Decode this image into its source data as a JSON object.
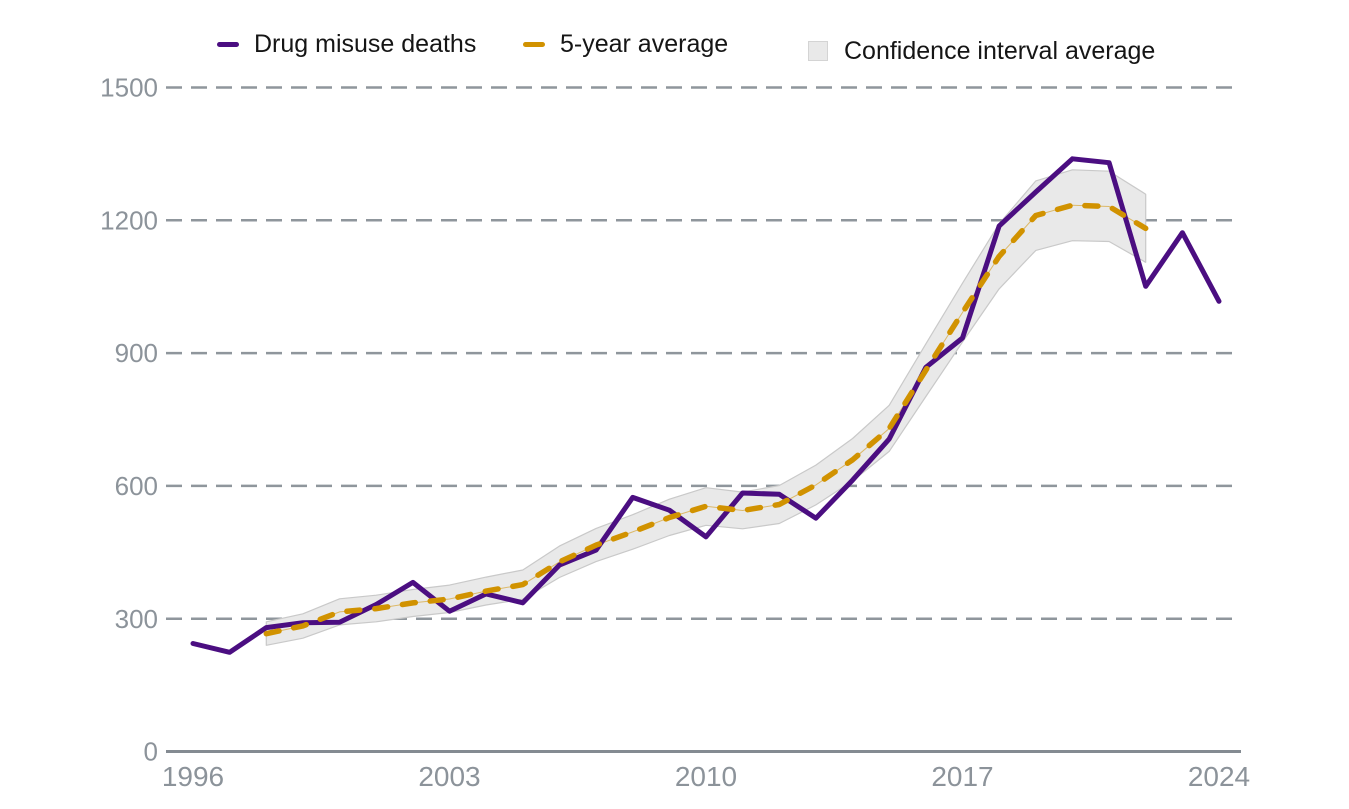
{
  "legend": {
    "items": [
      {
        "label": "Drug misuse deaths",
        "color": "#4b0e81",
        "marker": "line"
      },
      {
        "label": "5-year average",
        "color": "#d19200",
        "marker": "dashed-line"
      },
      {
        "label": "Confidence interval average",
        "color": "#e9e9e9",
        "marker": "box"
      }
    ]
  },
  "colors": {
    "deaths_line": "#4b0e81",
    "average_line": "#d19200",
    "band_fill": "#e9e9e9",
    "band_border": "#c9c9c9",
    "gridline": "#8f969c",
    "axis_line": "#848b92",
    "tick_label": "#8c939a",
    "legend_text": "#151515",
    "background": "#ffffff"
  },
  "chart_data": {
    "type": "line",
    "title": "",
    "xlabel": "",
    "ylabel": "",
    "xlim": [
      1996,
      2024
    ],
    "ylim": [
      0,
      1500
    ],
    "x_ticks": [
      1996,
      2003,
      2010,
      2017,
      2024
    ],
    "y_ticks": [
      0,
      300,
      600,
      900,
      1200,
      1500
    ],
    "grid": "horizontal-dashed",
    "legend_position": "top",
    "series": [
      {
        "name": "Drug misuse deaths",
        "style": "solid",
        "color": "#4b0e81",
        "x": [
          1996,
          1997,
          1998,
          1999,
          2000,
          2001,
          2002,
          2003,
          2004,
          2005,
          2006,
          2007,
          2008,
          2009,
          2010,
          2011,
          2012,
          2013,
          2014,
          2015,
          2016,
          2017,
          2018,
          2019,
          2020,
          2021,
          2022,
          2023,
          2024
        ],
        "values": [
          244,
          224,
          280,
          291,
          292,
          332,
          382,
          317,
          356,
          336,
          421,
          455,
          574,
          545,
          485,
          584,
          581,
          527,
          613,
          706,
          868,
          934,
          1187,
          1264,
          1339,
          1330,
          1051,
          1172,
          1017
        ]
      },
      {
        "name": "5-year average",
        "style": "dashed",
        "color": "#d19200",
        "x": [
          1998,
          1999,
          2000,
          2001,
          2002,
          2003,
          2004,
          2005,
          2006,
          2007,
          2008,
          2009,
          2010,
          2011,
          2012,
          2013,
          2014,
          2015,
          2016,
          2017,
          2018,
          2019,
          2020,
          2021,
          2022
        ],
        "values": [
          266.2,
          283.8,
          315.4,
          322.8,
          335.8,
          344.6,
          362.4,
          377,
          428.4,
          466.2,
          496,
          528.6,
          553.8,
          544.4,
          558,
          602.2,
          659,
          729.6,
          861.6,
          991.8,
          1118.4,
          1210.8,
          1234.2,
          1231.2,
          1181.8
        ]
      },
      {
        "name": "Confidence interval average",
        "style": "band",
        "color": "#e9e9e9",
        "x": [
          1998,
          1999,
          2000,
          2001,
          2002,
          2003,
          2004,
          2005,
          2006,
          2007,
          2008,
          2009,
          2010,
          2011,
          2012,
          2013,
          2014,
          2015,
          2016,
          2017,
          2018,
          2019,
          2020,
          2021,
          2022
        ],
        "lower": [
          240,
          256,
          286,
          293,
          305,
          314,
          331,
          344,
          393,
          429,
          457,
          488,
          511,
          503,
          515,
          557,
          611,
          678,
          802,
          925,
          1045,
          1132,
          1154,
          1152,
          1105
        ],
        "upper": [
          293,
          311,
          345,
          353,
          366,
          376,
          394,
          410,
          464,
          504,
          535,
          570,
          596,
          586,
          601,
          647,
          707,
          782,
          921,
          1058,
          1192,
          1289,
          1314,
          1311,
          1259
        ]
      }
    ]
  }
}
